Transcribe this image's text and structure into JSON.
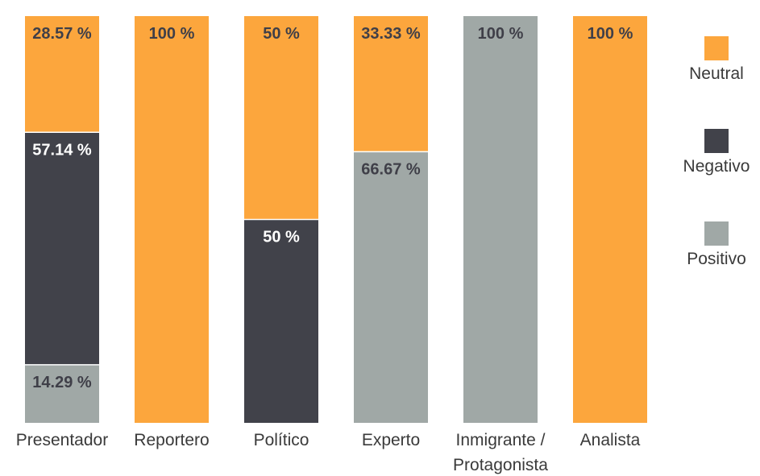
{
  "chart_data": {
    "type": "bar",
    "stacked": true,
    "categories": [
      [
        "Presentador"
      ],
      [
        "Reportero"
      ],
      [
        "Político"
      ],
      [
        "Experto"
      ],
      [
        "Inmigrante /",
        "Protagonista"
      ],
      [
        "Analista"
      ]
    ],
    "series": [
      {
        "name": "Neutral",
        "color": "#FCA63D",
        "label_color": "#3f3f48",
        "values": [
          28.57,
          100,
          50,
          33.33,
          0,
          100
        ],
        "labels": [
          "28.57 %",
          "100 %",
          "50 %",
          "33.33 %",
          "",
          "100 %"
        ]
      },
      {
        "name": "Negativo",
        "color": "#41424A",
        "label_color": "#ffffff",
        "values": [
          57.14,
          0,
          50,
          0,
          0,
          0
        ],
        "labels": [
          "57.14 %",
          "",
          "50 %",
          "",
          "",
          ""
        ]
      },
      {
        "name": "Positivo",
        "color": "#A0A8A6",
        "label_color": "#3f3f48",
        "values": [
          14.29,
          0,
          0,
          66.67,
          100,
          0
        ],
        "labels": [
          "14.29 %",
          "",
          "",
          "66.67 %",
          "100 %",
          ""
        ]
      }
    ],
    "ylim": [
      0,
      100
    ],
    "grid": false,
    "legend_position": "right"
  }
}
